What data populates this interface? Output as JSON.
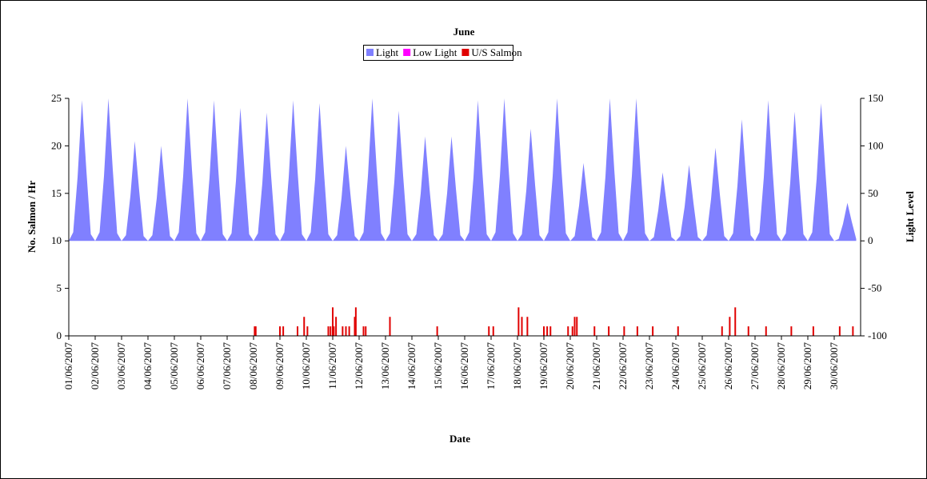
{
  "chart_data": {
    "type": "area-bar",
    "title": "June",
    "x_label": "Date",
    "y_label": "No. Salmon / Hr",
    "y2_label": "Light Level",
    "xlim": [
      0,
      720
    ],
    "xticks": [
      {
        "value": 0,
        "label": "01/06/2007"
      },
      {
        "value": 24,
        "label": "02/06/2007"
      },
      {
        "value": 48,
        "label": "03/06/2007"
      },
      {
        "value": 72,
        "label": "04/06/2007"
      },
      {
        "value": 96,
        "label": "05/06/2007"
      },
      {
        "value": 120,
        "label": "06/06/2007"
      },
      {
        "value": 144,
        "label": "07/06/2007"
      },
      {
        "value": 168,
        "label": "08/06/2007"
      },
      {
        "value": 192,
        "label": "09/06/2007"
      },
      {
        "value": 216,
        "label": "10/06/2007"
      },
      {
        "value": 240,
        "label": "11/06/2007"
      },
      {
        "value": 264,
        "label": "12/06/2007"
      },
      {
        "value": 288,
        "label": "13/06/2007"
      },
      {
        "value": 312,
        "label": "14/06/2007"
      },
      {
        "value": 336,
        "label": "15/06/2007"
      },
      {
        "value": 360,
        "label": "16/06/2007"
      },
      {
        "value": 384,
        "label": "17/06/2007"
      },
      {
        "value": 408,
        "label": "18/06/2007"
      },
      {
        "value": 432,
        "label": "19/06/2007"
      },
      {
        "value": 456,
        "label": "20/06/2007"
      },
      {
        "value": 480,
        "label": "21/06/2007"
      },
      {
        "value": 504,
        "label": "22/06/2007"
      },
      {
        "value": 528,
        "label": "23/06/2007"
      },
      {
        "value": 552,
        "label": "24/06/2007"
      },
      {
        "value": 576,
        "label": "25/06/2007"
      },
      {
        "value": 600,
        "label": "26/06/2007"
      },
      {
        "value": 624,
        "label": "27/06/2007"
      },
      {
        "value": 648,
        "label": "28/06/2007"
      },
      {
        "value": 672,
        "label": "29/06/2007"
      },
      {
        "value": 696,
        "label": "30/06/2007"
      }
    ],
    "ylim": [
      0,
      25
    ],
    "yticks": [
      0,
      5,
      10,
      15,
      20,
      25
    ],
    "y2lim": [
      -100,
      150
    ],
    "y2ticks": [
      -100,
      -50,
      0,
      50,
      100,
      150
    ],
    "series": [
      {
        "name": "Light",
        "color": "#8080ff",
        "axis": "y2",
        "kind": "area",
        "x": [
          0,
          4,
          8,
          12,
          16,
          20,
          24,
          28,
          32,
          36,
          40,
          44,
          48,
          52,
          56,
          60,
          64,
          68,
          72,
          76,
          80,
          84,
          88,
          92,
          96,
          100,
          104,
          108,
          112,
          116,
          120,
          124,
          128,
          132,
          136,
          140,
          144,
          148,
          152,
          156,
          160,
          164,
          168,
          172,
          176,
          180,
          184,
          188,
          192,
          196,
          200,
          204,
          208,
          212,
          216,
          220,
          224,
          228,
          232,
          236,
          240,
          244,
          248,
          252,
          256,
          260,
          264,
          268,
          272,
          276,
          280,
          284,
          288,
          292,
          296,
          300,
          304,
          308,
          312,
          316,
          320,
          324,
          328,
          332,
          336,
          340,
          344,
          348,
          352,
          356,
          360,
          364,
          368,
          372,
          376,
          380,
          384,
          388,
          392,
          396,
          400,
          404,
          408,
          412,
          416,
          420,
          424,
          428,
          432,
          436,
          440,
          444,
          448,
          452,
          456,
          460,
          464,
          468,
          472,
          476,
          480,
          484,
          488,
          492,
          496,
          500,
          504,
          508,
          512,
          516,
          520,
          524,
          528,
          532,
          536,
          540,
          544,
          548,
          552,
          556,
          560,
          564,
          568,
          572,
          576,
          580,
          584,
          588,
          592,
          596,
          600,
          604,
          608,
          612,
          616,
          620,
          624,
          628,
          632,
          636,
          640,
          644,
          648,
          652,
          656,
          660,
          664,
          668,
          672,
          676,
          680,
          684,
          688,
          692,
          696,
          700,
          704,
          708,
          712,
          716
        ],
        "values": [
          0,
          9,
          67,
          148,
          74,
          7,
          0,
          9,
          68,
          150,
          75,
          8,
          0,
          6,
          47,
          105,
          53,
          5,
          0,
          6,
          45,
          100,
          50,
          5,
          0,
          9,
          68,
          150,
          75,
          8,
          0,
          9,
          67,
          148,
          74,
          7,
          0,
          8,
          63,
          140,
          70,
          7,
          0,
          8,
          61,
          135,
          68,
          7,
          0,
          9,
          67,
          148,
          74,
          7,
          0,
          9,
          65,
          145,
          73,
          7,
          0,
          6,
          45,
          100,
          50,
          5,
          0,
          9,
          68,
          150,
          75,
          8,
          0,
          8,
          62,
          137,
          69,
          7,
          0,
          7,
          50,
          110,
          55,
          6,
          0,
          7,
          50,
          110,
          55,
          6,
          0,
          9,
          67,
          148,
          74,
          7,
          0,
          9,
          68,
          150,
          75,
          8,
          0,
          7,
          53,
          118,
          59,
          6,
          0,
          9,
          68,
          150,
          75,
          8,
          0,
          5,
          37,
          82,
          41,
          4,
          0,
          9,
          68,
          150,
          75,
          8,
          0,
          9,
          68,
          150,
          75,
          8,
          0,
          4,
          32,
          72,
          36,
          4,
          0,
          5,
          36,
          80,
          40,
          4,
          0,
          6,
          44,
          98,
          49,
          5,
          0,
          8,
          58,
          128,
          64,
          6,
          0,
          9,
          67,
          148,
          74,
          7,
          0,
          8,
          61,
          136,
          68,
          7,
          0,
          9,
          65,
          145,
          73,
          7,
          0,
          2,
          18,
          40,
          20,
          2
        ]
      },
      {
        "name": "Low Light",
        "color": "#ff00ff",
        "axis": "y",
        "kind": "bar",
        "x": [],
        "values": []
      },
      {
        "name": "U/S Salmon",
        "color": "#e00000",
        "axis": "y",
        "kind": "bar",
        "x": [
          169,
          170,
          192,
          195,
          208,
          214,
          217,
          236,
          238,
          240,
          241,
          243,
          249,
          252,
          255,
          260,
          261,
          268,
          270,
          292,
          335,
          382,
          386,
          409,
          412,
          417,
          432,
          435,
          438,
          454,
          458,
          460,
          462,
          478,
          491,
          505,
          517,
          531,
          554,
          594,
          601,
          606,
          618,
          634,
          657,
          677,
          701,
          713
        ],
        "values": [
          1,
          1,
          1,
          1,
          1,
          2,
          1,
          1,
          1,
          3,
          1,
          2,
          1,
          1,
          1,
          2,
          3,
          1,
          1,
          2,
          1,
          1,
          1,
          3,
          2,
          2,
          1,
          1,
          1,
          1,
          1,
          2,
          2,
          1,
          1,
          1,
          1,
          1,
          1,
          1,
          2,
          3,
          1,
          1,
          1,
          1,
          1,
          1
        ]
      }
    ]
  }
}
